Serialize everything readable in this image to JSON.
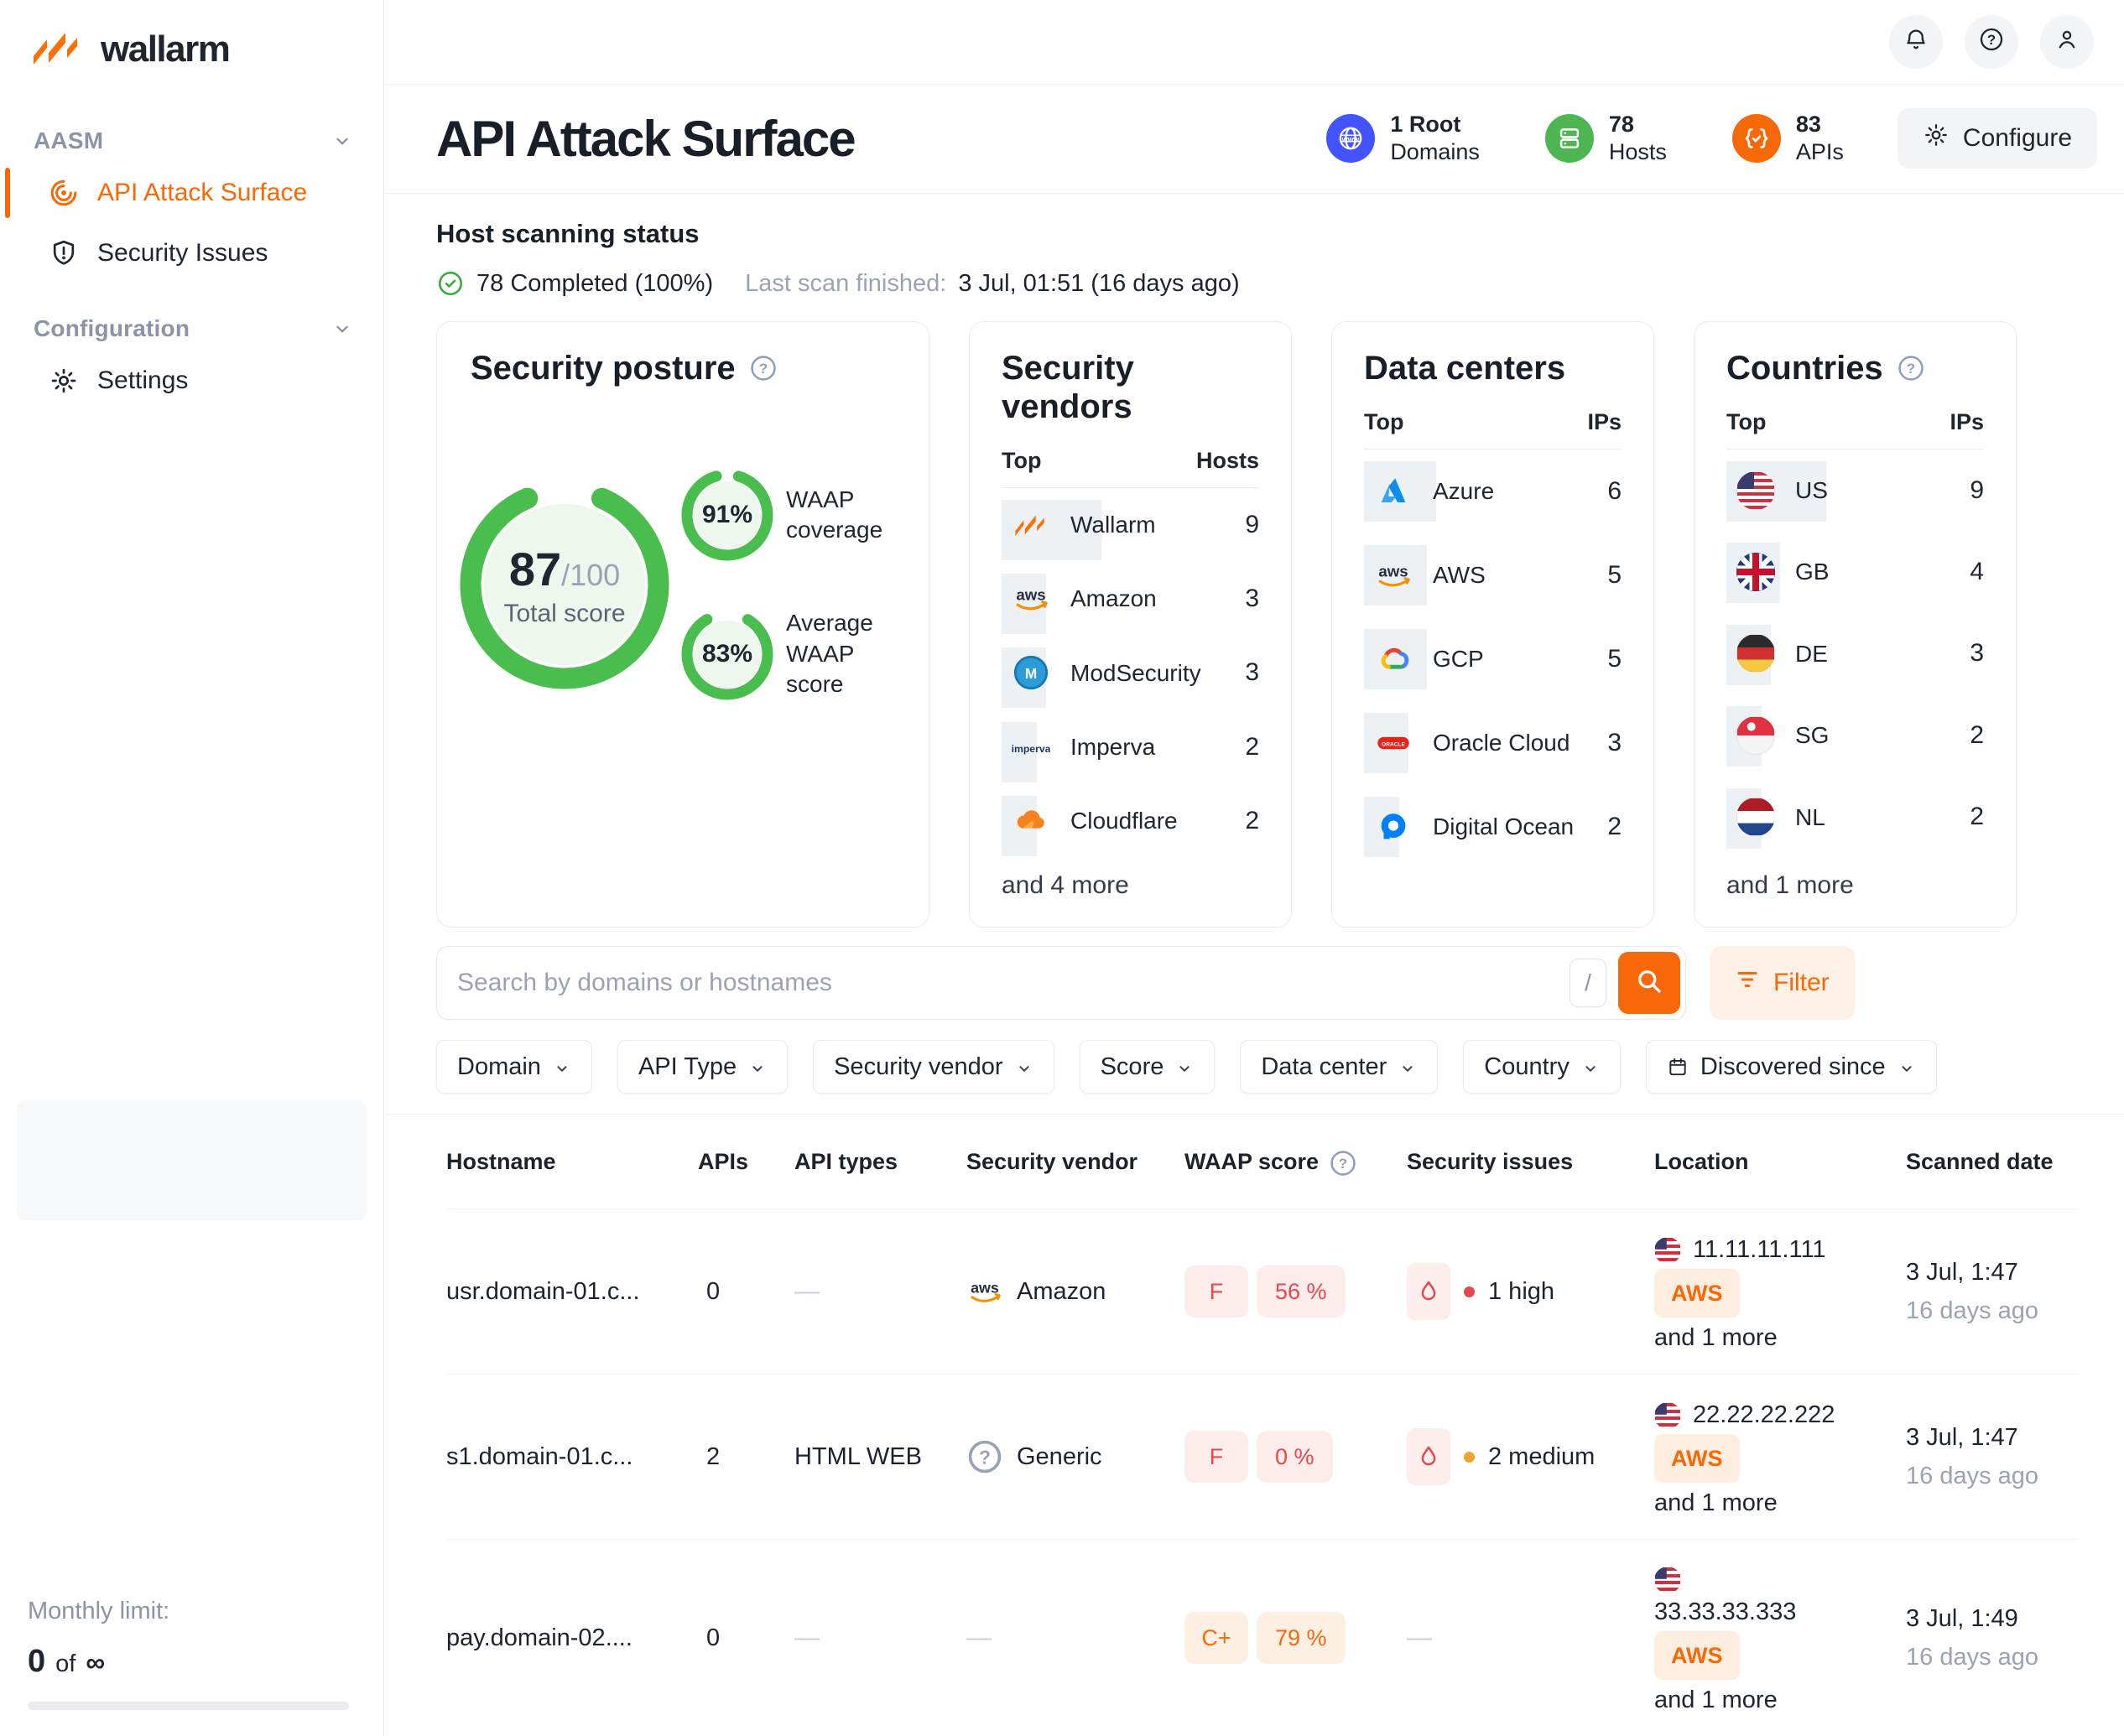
{
  "theme": {
    "orange": "#f76808",
    "orange_light_bg": "#fdf1e5",
    "green": "#49bd4d",
    "green_light": "#edf7ed",
    "blue": "#4353ff",
    "red": "#e5484d",
    "red_light_bg": "#fdecec",
    "text_dark": "#1d232e",
    "text_muted": "#9aa3b3"
  },
  "sidebar": {
    "logo": "wallarm",
    "sections": [
      {
        "label": "AASM",
        "items": [
          {
            "label": "API Attack Surface",
            "icon": "radar-icon",
            "active": true
          },
          {
            "label": "Security Issues",
            "icon": "shield-alert-icon",
            "active": false
          }
        ]
      },
      {
        "label": "Configuration",
        "items": [
          {
            "label": "Settings",
            "icon": "gear-icon",
            "active": false
          }
        ]
      }
    ],
    "monthly_limit": {
      "label": "Monthly limit:",
      "used": "0",
      "conj": "of",
      "total": "∞"
    }
  },
  "header": {
    "title": "API Attack Surface",
    "stats": [
      {
        "value": "1 Root",
        "label": "Domains",
        "icon": "globe-www-icon",
        "color": "#4353ff"
      },
      {
        "value": "78",
        "label": "Hosts",
        "icon": "server-icon",
        "color": "#4db551"
      },
      {
        "value": "83",
        "label": "APIs",
        "icon": "braces-check-icon",
        "color": "#f76808"
      }
    ],
    "configure_label": "Configure"
  },
  "scanning": {
    "title": "Host scanning status",
    "completed": "78 Completed (100%)",
    "last_scan_label": "Last scan finished:",
    "last_scan_value": "3 Jul, 01:51 (16 days ago)"
  },
  "cards": {
    "posture": {
      "title": "Security posture",
      "total_value": "87",
      "total_max": "/100",
      "total_label": "Total score",
      "total_pct": 87,
      "rings": [
        {
          "value": "91%",
          "pct": 91,
          "label": "WAAP coverage"
        },
        {
          "value": "83%",
          "pct": 83,
          "label": "Average WAAP score"
        }
      ]
    },
    "vendors": {
      "title": "Security vendors",
      "col_name": "Top",
      "col_value": "Hosts",
      "rows": [
        {
          "icon": "wallarm-logo",
          "name": "Wallarm",
          "value": 9
        },
        {
          "icon": "aws-logo",
          "name": "Amazon",
          "value": 3
        },
        {
          "icon": "modsecurity-logo",
          "name": "ModSecurity",
          "value": 3
        },
        {
          "icon": "imperva-logo",
          "name": "Imperva",
          "value": 2
        },
        {
          "icon": "cloudflare-logo",
          "name": "Cloudflare",
          "value": 2
        }
      ],
      "more": "and 4 more"
    },
    "datacenters": {
      "title": "Data centers",
      "col_name": "Top",
      "col_value": "IPs",
      "rows": [
        {
          "icon": "azure-logo",
          "name": "Azure",
          "value": 6
        },
        {
          "icon": "aws-logo",
          "name": "AWS",
          "value": 5
        },
        {
          "icon": "gcp-logo",
          "name": "GCP",
          "value": 5
        },
        {
          "icon": "oracle-logo",
          "name": "Oracle Cloud",
          "value": 3
        },
        {
          "icon": "digitalocean-logo",
          "name": "Digital Ocean",
          "value": 2
        }
      ],
      "more": ""
    },
    "countries": {
      "title": "Countries",
      "col_name": "Top",
      "col_value": "IPs",
      "rows": [
        {
          "icon": "flag:us",
          "name": "US",
          "value": 9
        },
        {
          "icon": "flag:gb",
          "name": "GB",
          "value": 4
        },
        {
          "icon": "flag:de",
          "name": "DE",
          "value": 3
        },
        {
          "icon": "flag:sg",
          "name": "SG",
          "value": 2
        },
        {
          "icon": "flag:nl",
          "name": "NL",
          "value": 2
        }
      ],
      "more": "and 1 more"
    }
  },
  "search": {
    "placeholder": "Search by domains or hostnames",
    "shortcut": "/",
    "filter_label": "Filter"
  },
  "filters": [
    {
      "label": "Domain",
      "icon": ""
    },
    {
      "label": "API Type",
      "icon": ""
    },
    {
      "label": "Security vendor",
      "icon": ""
    },
    {
      "label": "Score",
      "icon": ""
    },
    {
      "label": "Data center",
      "icon": ""
    },
    {
      "label": "Country",
      "icon": ""
    },
    {
      "label": "Discovered since",
      "icon": "calendar-icon"
    }
  ],
  "table": {
    "headers": [
      "Hostname",
      "APIs",
      "API types",
      "Security vendor",
      "WAAP score",
      "Security issues",
      "Location",
      "Scanned date"
    ],
    "rows": [
      {
        "hostname": "usr.domain-01.c...",
        "apis": "0",
        "api_types": "",
        "vendor": {
          "icon": "aws-logo",
          "name": "Amazon"
        },
        "score": {
          "grade": "F",
          "pct": "56 %",
          "tone": "red"
        },
        "issues": {
          "text": "1 high",
          "dot": "#e5484d"
        },
        "location": {
          "flag": "us",
          "ip": "11.11.11.111",
          "badge": "AWS",
          "more": "and 1 more",
          "stack": false
        },
        "date": "3 Jul, 1:47",
        "ago": "16 days ago"
      },
      {
        "hostname": "s1.domain-01.c...",
        "apis": "2",
        "api_types": "HTML WEB",
        "vendor": {
          "icon": "generic-icon",
          "name": "Generic"
        },
        "score": {
          "grade": "F",
          "pct": "0 %",
          "tone": "red"
        },
        "issues": {
          "text": "2 medium",
          "dot": "#f0a32e"
        },
        "location": {
          "flag": "us",
          "ip": "22.22.22.222",
          "badge": "AWS",
          "more": "and 1 more",
          "stack": false
        },
        "date": "3 Jul, 1:47",
        "ago": "16 days ago"
      },
      {
        "hostname": "pay.domain-02....",
        "apis": "0",
        "api_types": "",
        "vendor": null,
        "score": {
          "grade": "C+",
          "pct": "79 %",
          "tone": "orange"
        },
        "issues": null,
        "location": {
          "flag": "us",
          "ip": "33.33.33.333",
          "badge": "AWS",
          "more": "and 1 more",
          "stack": true
        },
        "date": "3 Jul, 1:49",
        "ago": "16 days ago"
      }
    ]
  }
}
